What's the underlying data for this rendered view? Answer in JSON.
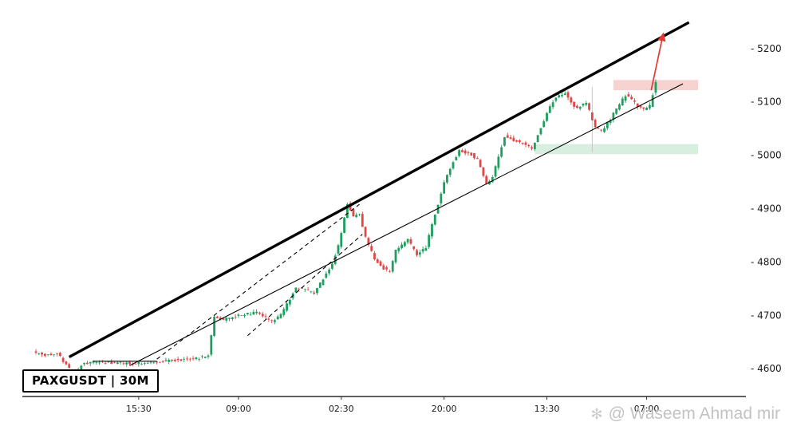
{
  "symbol_box": {
    "label": "PAXGUSDT | 30M"
  },
  "watermark": {
    "icon_char": "✻",
    "text": "@ Waseem Ahmad mir"
  },
  "chart_data": {
    "type": "candlestick",
    "symbol": "PAXGUSDT",
    "timeframe": "30M",
    "y_axis": {
      "min": 4548,
      "max": 5276,
      "tick_values": [
        4600,
        4700,
        4800,
        4900,
        5000,
        5100,
        5200
      ],
      "tick_prefix": "- "
    },
    "x_axis": {
      "ticks": [
        {
          "index": 34,
          "label": "15:30"
        },
        {
          "index": 67,
          "label": "09:00"
        },
        {
          "index": 101,
          "label": "02:30"
        },
        {
          "index": 135,
          "label": "20:00"
        },
        {
          "index": 169,
          "label": "13:30"
        },
        {
          "index": 202,
          "label": "07:00"
        }
      ]
    },
    "n_candles": 206,
    "price_path_anchors": [
      [
        0,
        4632
      ],
      [
        4,
        4625
      ],
      [
        8,
        4630
      ],
      [
        12,
        4600
      ],
      [
        14,
        4588
      ],
      [
        16,
        4608
      ],
      [
        20,
        4612
      ],
      [
        35,
        4610
      ],
      [
        45,
        4615
      ],
      [
        55,
        4620
      ],
      [
        58,
        4625
      ],
      [
        60,
        4698
      ],
      [
        63,
        4692
      ],
      [
        68,
        4700
      ],
      [
        74,
        4705
      ],
      [
        79,
        4688
      ],
      [
        82,
        4700
      ],
      [
        87,
        4752
      ],
      [
        90,
        4748
      ],
      [
        93,
        4742
      ],
      [
        96,
        4768
      ],
      [
        99,
        4798
      ],
      [
        101,
        4830
      ],
      [
        104,
        4908
      ],
      [
        106,
        4885
      ],
      [
        108,
        4890
      ],
      [
        110,
        4845
      ],
      [
        113,
        4805
      ],
      [
        116,
        4788
      ],
      [
        118,
        4782
      ],
      [
        120,
        4822
      ],
      [
        124,
        4842
      ],
      [
        127,
        4812
      ],
      [
        130,
        4828
      ],
      [
        133,
        4890
      ],
      [
        136,
        4948
      ],
      [
        139,
        4988
      ],
      [
        141,
        5008
      ],
      [
        145,
        5002
      ],
      [
        147,
        4992
      ],
      [
        150,
        4945
      ],
      [
        152,
        4958
      ],
      [
        156,
        5035
      ],
      [
        159,
        5028
      ],
      [
        162,
        5022
      ],
      [
        165,
        5012
      ],
      [
        168,
        5052
      ],
      [
        171,
        5092
      ],
      [
        173,
        5108
      ],
      [
        176,
        5118
      ],
      [
        178,
        5098
      ],
      [
        180,
        5088
      ],
      [
        183,
        5098
      ],
      [
        186,
        5052
      ],
      [
        188,
        5045
      ],
      [
        191,
        5068
      ],
      [
        193,
        5088
      ],
      [
        196,
        5112
      ],
      [
        198,
        5105
      ],
      [
        200,
        5092
      ],
      [
        202,
        5086
      ],
      [
        204,
        5092
      ],
      [
        206,
        5138
      ]
    ],
    "noise": {
      "seed": 42,
      "body": 5,
      "wick": 5
    },
    "colors": {
      "up": "#1e9e5f",
      "down": "#e14747",
      "trendline": "#000000",
      "arrow": "#e53935",
      "zone_resistance": "#f6d3d0",
      "zone_support": "#d8efdf",
      "axis_text": "#1a1a1a",
      "axis_line": "#000000",
      "vline": "#c9c9c9"
    },
    "overlays": {
      "channel_top": {
        "from": [
          11,
          4622
        ],
        "to": [
          216,
          5249
        ],
        "width": 3.4
      },
      "channel_bottom": {
        "from": [
          31,
          4606
        ],
        "to": [
          214,
          5134
        ],
        "width": 1.1
      },
      "base_line": {
        "from": [
          19,
          4614
        ],
        "to": [
          40,
          4614
        ],
        "width": 1.1
      },
      "dashed_lines": [
        {
          "from": [
            40,
            4618
          ],
          "to": [
            107,
            4908
          ]
        },
        {
          "from": [
            70,
            4662
          ],
          "to": [
            108,
            4852
          ]
        }
      ],
      "zones": [
        {
          "kind": "resistance",
          "from_index": 191,
          "to_index": 219,
          "price_top": 5141,
          "price_bottom": 5122
        },
        {
          "kind": "support",
          "from_index": 165,
          "to_index": 219,
          "price_top": 5021,
          "price_bottom": 5002
        }
      ],
      "vline": {
        "index": 184,
        "price_from": 5128,
        "price_to": 5006
      },
      "arrow": {
        "from": [
          203.5,
          5122
        ],
        "to": [
          207.5,
          5228
        ]
      }
    }
  }
}
